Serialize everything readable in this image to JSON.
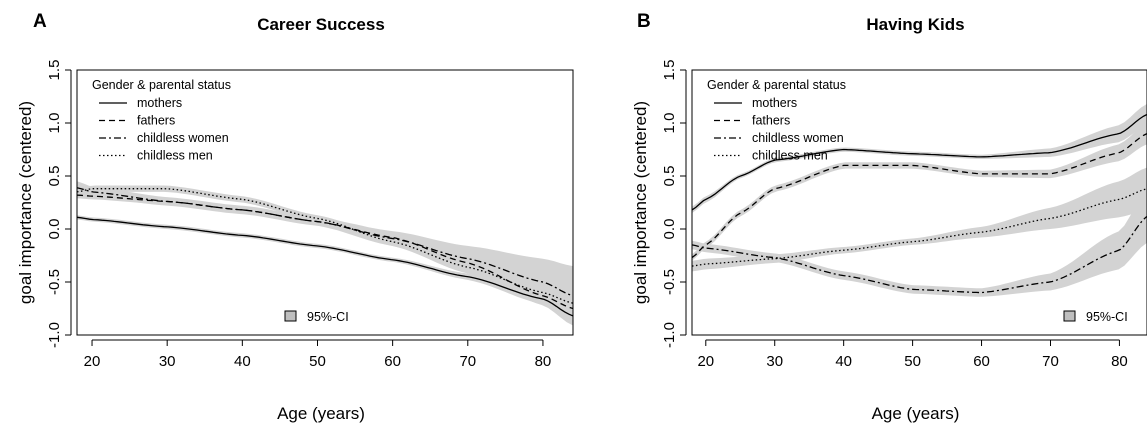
{
  "chart_data": [
    {
      "panel_letter": "A",
      "type": "line",
      "title": "Career Success",
      "xlabel": "Age (years)",
      "ylabel": "goal importance (centered)",
      "xlim": [
        18,
        84
      ],
      "ylim": [
        -1.0,
        1.5
      ],
      "x_ticks": [
        20,
        30,
        40,
        50,
        60,
        70,
        80
      ],
      "y_ticks": [
        -1.0,
        -0.5,
        0.0,
        0.5,
        1.0,
        1.5
      ],
      "y_tick_labels": [
        "-1.0",
        "-0.5",
        "0.0",
        "0.5",
        "1.0",
        "1.5"
      ],
      "grid": false,
      "legend": {
        "title": "Gender & parental status",
        "position": "top-left"
      },
      "ci_legend": {
        "label": "95%-CI",
        "position": "bottom-center"
      },
      "band_color": "#d3d3d3",
      "series": [
        {
          "name": "mothers",
          "dash": "solid",
          "x": [
            18,
            20,
            30,
            40,
            50,
            60,
            70,
            80,
            84
          ],
          "y": [
            0.11,
            0.09,
            0.02,
            -0.06,
            -0.16,
            -0.29,
            -0.45,
            -0.66,
            -0.82
          ],
          "ci": [
            0.02,
            0.02,
            0.02,
            0.02,
            0.02,
            0.02,
            0.03,
            0.05,
            0.06
          ]
        },
        {
          "name": "fathers",
          "dash": "dashed",
          "x": [
            18,
            20,
            30,
            40,
            50,
            60,
            70,
            80,
            84
          ],
          "y": [
            0.32,
            0.31,
            0.26,
            0.18,
            0.07,
            -0.08,
            -0.32,
            -0.63,
            -0.75
          ],
          "ci": [
            0.03,
            0.03,
            0.03,
            0.03,
            0.03,
            0.04,
            0.05,
            0.07,
            0.08
          ]
        },
        {
          "name": "childless women",
          "dash": "dashdot",
          "x": [
            18,
            20,
            30,
            40,
            50,
            60,
            70,
            80,
            84
          ],
          "y": [
            0.39,
            0.35,
            0.26,
            0.18,
            0.07,
            -0.09,
            -0.28,
            -0.5,
            -0.63
          ],
          "ci": [
            0.06,
            0.05,
            0.04,
            0.04,
            0.04,
            0.07,
            0.12,
            0.22,
            0.28
          ]
        },
        {
          "name": "childless men",
          "dash": "dotted",
          "x": [
            18,
            20,
            30,
            40,
            50,
            60,
            70,
            80,
            84
          ],
          "y": [
            0.35,
            0.38,
            0.38,
            0.28,
            0.1,
            -0.12,
            -0.36,
            -0.6,
            -0.7
          ],
          "ci": [
            0.03,
            0.03,
            0.03,
            0.03,
            0.03,
            0.04,
            0.06,
            0.08,
            0.09
          ]
        }
      ]
    },
    {
      "panel_letter": "B",
      "type": "line",
      "title": "Having Kids",
      "xlabel": "Age (years)",
      "ylabel": "goal importance (centered)",
      "xlim": [
        18,
        84
      ],
      "ylim": [
        -1.0,
        1.5
      ],
      "x_ticks": [
        20,
        30,
        40,
        50,
        60,
        70,
        80
      ],
      "y_ticks": [
        -1.0,
        -0.5,
        0.0,
        0.5,
        1.0,
        1.5
      ],
      "y_tick_labels": [
        "-1.0",
        "-0.5",
        "0.0",
        "0.5",
        "1.0",
        "1.5"
      ],
      "grid": false,
      "legend": {
        "title": "Gender & parental status",
        "position": "top-left"
      },
      "ci_legend": {
        "label": "95%-CI",
        "position": "bottom-right"
      },
      "band_color": "#d3d3d3",
      "series": [
        {
          "name": "mothers",
          "dash": "solid",
          "x": [
            18,
            20,
            25,
            30,
            40,
            50,
            60,
            70,
            80,
            84
          ],
          "y": [
            0.18,
            0.28,
            0.5,
            0.65,
            0.75,
            0.71,
            0.68,
            0.72,
            0.9,
            1.08
          ],
          "ci": [
            0.03,
            0.03,
            0.02,
            0.02,
            0.02,
            0.02,
            0.02,
            0.04,
            0.08,
            0.1
          ]
        },
        {
          "name": "fathers",
          "dash": "dashed",
          "x": [
            18,
            20,
            25,
            30,
            40,
            50,
            60,
            70,
            80,
            84
          ],
          "y": [
            -0.27,
            -0.15,
            0.15,
            0.38,
            0.6,
            0.6,
            0.52,
            0.52,
            0.72,
            0.9
          ],
          "ci": [
            0.03,
            0.03,
            0.03,
            0.03,
            0.03,
            0.03,
            0.03,
            0.04,
            0.08,
            0.1
          ]
        },
        {
          "name": "childless women",
          "dash": "dashdot",
          "x": [
            18,
            20,
            30,
            40,
            50,
            60,
            70,
            80,
            84
          ],
          "y": [
            -0.15,
            -0.18,
            -0.27,
            -0.44,
            -0.57,
            -0.6,
            -0.5,
            -0.2,
            0.12
          ],
          "ci": [
            0.04,
            0.04,
            0.04,
            0.04,
            0.04,
            0.04,
            0.08,
            0.18,
            0.25
          ]
        },
        {
          "name": "childless men",
          "dash": "dotted",
          "x": [
            18,
            20,
            30,
            40,
            50,
            60,
            70,
            80,
            84
          ],
          "y": [
            -0.35,
            -0.33,
            -0.28,
            -0.2,
            -0.12,
            -0.03,
            0.1,
            0.28,
            0.38
          ],
          "ci": [
            0.05,
            0.05,
            0.04,
            0.03,
            0.03,
            0.05,
            0.1,
            0.17,
            0.2
          ]
        }
      ]
    }
  ]
}
